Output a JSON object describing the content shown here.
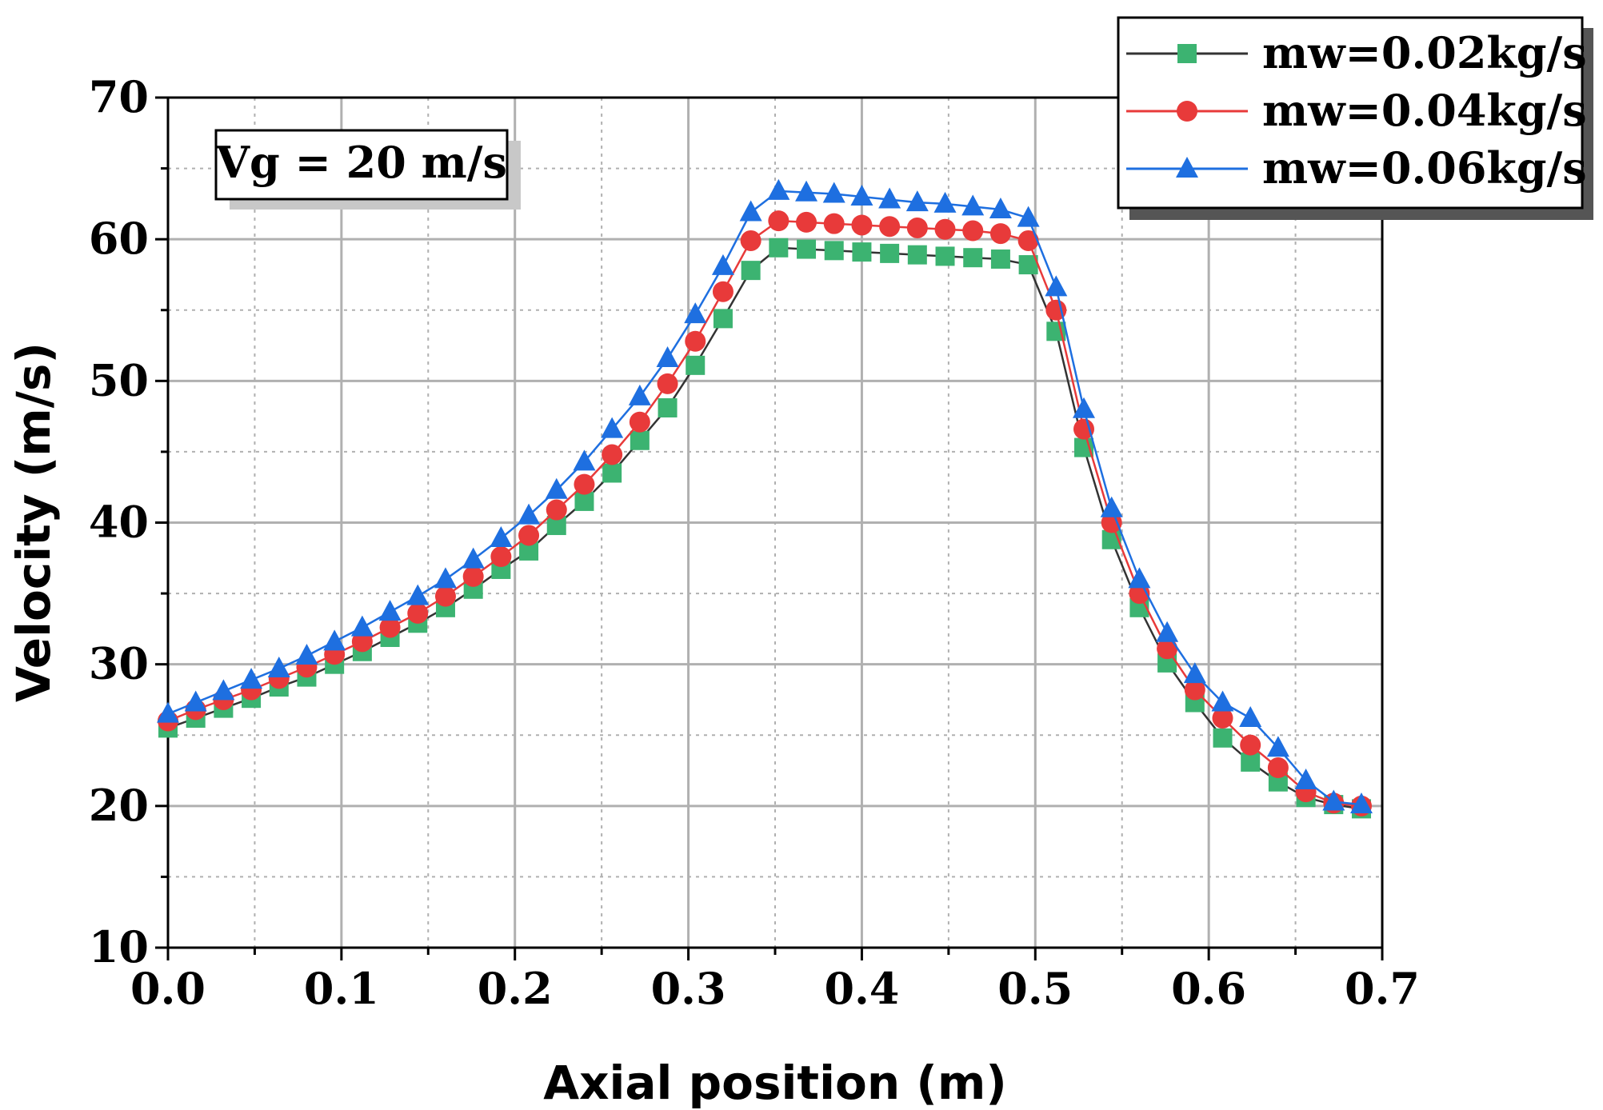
{
  "chart_data": {
    "type": "line",
    "title": "",
    "xlabel": "Axial position (m)",
    "ylabel": "Velocity (m/s)",
    "xlim": [
      0.0,
      0.7
    ],
    "ylim": [
      10,
      70
    ],
    "xticks": [
      "0.0",
      "0.1",
      "0.2",
      "0.3",
      "0.4",
      "0.5",
      "0.6",
      "0.7"
    ],
    "yticks": [
      "10",
      "20",
      "30",
      "40",
      "50",
      "60",
      "70"
    ],
    "grid": true,
    "legend_position": "top-right",
    "annotation": "Vg = 20 m/s",
    "x": [
      0.0,
      0.016,
      0.032,
      0.048,
      0.064,
      0.08,
      0.096,
      0.112,
      0.128,
      0.144,
      0.16,
      0.176,
      0.192,
      0.208,
      0.224,
      0.24,
      0.256,
      0.272,
      0.288,
      0.304,
      0.32,
      0.336,
      0.352,
      0.368,
      0.384,
      0.4,
      0.416,
      0.432,
      0.448,
      0.464,
      0.48,
      0.496,
      0.512,
      0.528,
      0.544,
      0.56,
      0.576,
      0.592,
      0.608,
      0.624,
      0.64,
      0.656,
      0.672,
      0.688
    ],
    "series": [
      {
        "name": "mw=0.02kg/s",
        "color": "#3cb371",
        "marker": "square",
        "values": [
          25.5,
          26.2,
          26.9,
          27.6,
          28.4,
          29.1,
          30.0,
          30.9,
          31.9,
          32.9,
          34.0,
          35.3,
          36.7,
          38.0,
          39.8,
          41.5,
          43.5,
          45.8,
          48.1,
          51.1,
          54.4,
          57.8,
          59.4,
          59.3,
          59.2,
          59.1,
          59.0,
          58.9,
          58.8,
          58.7,
          58.6,
          58.2,
          53.5,
          45.3,
          38.8,
          34.0,
          30.1,
          27.3,
          24.8,
          23.1,
          21.7,
          20.6,
          20.1,
          19.8
        ]
      },
      {
        "name": "mw=0.04kg/s",
        "color": "#e83a3a",
        "marker": "circle",
        "values": [
          26.0,
          26.8,
          27.5,
          28.2,
          29.0,
          29.8,
          30.7,
          31.6,
          32.6,
          33.6,
          34.8,
          36.2,
          37.6,
          39.1,
          40.9,
          42.7,
          44.8,
          47.1,
          49.8,
          52.8,
          56.3,
          59.9,
          61.3,
          61.2,
          61.1,
          61.0,
          60.9,
          60.8,
          60.7,
          60.6,
          60.4,
          59.9,
          55.0,
          46.6,
          40.0,
          35.0,
          31.1,
          28.2,
          26.2,
          24.3,
          22.7,
          21.0,
          20.2,
          20.0
        ]
      },
      {
        "name": "mw=0.06kg/s",
        "color": "#1e6fe0",
        "marker": "triangle",
        "values": [
          26.5,
          27.3,
          28.1,
          28.9,
          29.7,
          30.6,
          31.6,
          32.6,
          33.7,
          34.8,
          36.0,
          37.4,
          38.9,
          40.5,
          42.3,
          44.3,
          46.6,
          48.9,
          51.6,
          54.7,
          58.1,
          61.9,
          63.4,
          63.3,
          63.2,
          63.0,
          62.8,
          62.6,
          62.5,
          62.3,
          62.1,
          61.5,
          56.6,
          48.0,
          41.0,
          36.0,
          32.2,
          29.3,
          27.3,
          26.2,
          24.1,
          21.8,
          20.3,
          20.1
        ]
      }
    ]
  }
}
